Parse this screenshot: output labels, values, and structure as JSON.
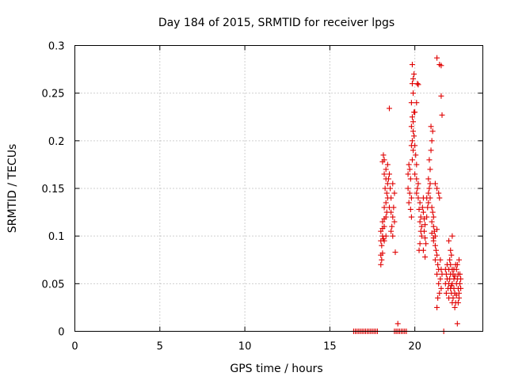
{
  "chart_data": {
    "type": "scatter",
    "title": "Day 184 of 2015, SRMTID for receiver lpgs",
    "xlabel": "GPS time / hours",
    "ylabel": "SRMTID / TECUs",
    "xlim": [
      0,
      24
    ],
    "ylim": [
      0,
      0.3
    ],
    "xticks": [
      "0",
      "5",
      "10",
      "15",
      "20"
    ],
    "yticks": [
      "0",
      "0.05",
      "0.1",
      "0.15",
      "0.2",
      "0.25",
      "0.3"
    ],
    "grid": true,
    "marker": "+",
    "color": "#e00000",
    "series": [
      {
        "points": [
          [
            16.4,
            0
          ],
          [
            16.5,
            0
          ],
          [
            16.6,
            0
          ],
          [
            16.7,
            0
          ],
          [
            16.8,
            0
          ],
          [
            16.9,
            0
          ],
          [
            17.0,
            0
          ],
          [
            17.1,
            0
          ],
          [
            17.2,
            0
          ],
          [
            17.3,
            0
          ],
          [
            17.4,
            0
          ],
          [
            17.5,
            0
          ],
          [
            17.6,
            0
          ],
          [
            17.7,
            0
          ],
          [
            17.8,
            0
          ],
          [
            18.8,
            0
          ],
          [
            18.9,
            0
          ],
          [
            19.0,
            0
          ],
          [
            19.1,
            0
          ],
          [
            19.2,
            0
          ],
          [
            19.3,
            0
          ],
          [
            19.4,
            0
          ],
          [
            19.5,
            0
          ],
          [
            21.7,
            0
          ],
          [
            18.0,
            0.07
          ],
          [
            18.05,
            0.075
          ],
          [
            18.0,
            0.08
          ],
          [
            18.1,
            0.082
          ],
          [
            18.05,
            0.09
          ],
          [
            18.0,
            0.095
          ],
          [
            18.15,
            0.097
          ],
          [
            18.1,
            0.1
          ],
          [
            18.2,
            0.095
          ],
          [
            18.0,
            0.105
          ],
          [
            18.1,
            0.108
          ],
          [
            18.2,
            0.11
          ],
          [
            18.3,
            0.1
          ],
          [
            18.1,
            0.115
          ],
          [
            18.2,
            0.118
          ],
          [
            18.3,
            0.12
          ],
          [
            18.35,
            0.125
          ],
          [
            18.2,
            0.13
          ],
          [
            18.3,
            0.135
          ],
          [
            18.4,
            0.14
          ],
          [
            18.35,
            0.145
          ],
          [
            18.25,
            0.15
          ],
          [
            18.4,
            0.155
          ],
          [
            18.3,
            0.16
          ],
          [
            18.45,
            0.16
          ],
          [
            18.2,
            0.165
          ],
          [
            18.3,
            0.17
          ],
          [
            18.4,
            0.175
          ],
          [
            18.1,
            0.178
          ],
          [
            18.2,
            0.18
          ],
          [
            18.15,
            0.185
          ],
          [
            18.5,
            0.165
          ],
          [
            18.55,
            0.15
          ],
          [
            18.6,
            0.14
          ],
          [
            18.5,
            0.13
          ],
          [
            18.6,
            0.125
          ],
          [
            18.7,
            0.12
          ],
          [
            18.65,
            0.11
          ],
          [
            18.7,
            0.1
          ],
          [
            18.6,
            0.105
          ],
          [
            18.8,
            0.115
          ],
          [
            18.75,
            0.13
          ],
          [
            18.8,
            0.145
          ],
          [
            18.7,
            0.155
          ],
          [
            18.5,
            0.234
          ],
          [
            18.85,
            0.083
          ],
          [
            19.0,
            0.008
          ],
          [
            19.6,
            0.165
          ],
          [
            19.7,
            0.17
          ],
          [
            19.65,
            0.175
          ],
          [
            19.75,
            0.16
          ],
          [
            19.6,
            0.15
          ],
          [
            19.7,
            0.145
          ],
          [
            19.8,
            0.14
          ],
          [
            19.65,
            0.135
          ],
          [
            19.75,
            0.128
          ],
          [
            19.8,
            0.12
          ],
          [
            19.85,
            0.18
          ],
          [
            19.9,
            0.19
          ],
          [
            19.8,
            0.195
          ],
          [
            19.85,
            0.2
          ],
          [
            19.9,
            0.21
          ],
          [
            19.8,
            0.215
          ],
          [
            19.9,
            0.22
          ],
          [
            19.85,
            0.225
          ],
          [
            19.95,
            0.23
          ],
          [
            19.8,
            0.24
          ],
          [
            19.9,
            0.25
          ],
          [
            19.85,
            0.26
          ],
          [
            19.9,
            0.265
          ],
          [
            19.95,
            0.27
          ],
          [
            19.85,
            0.28
          ],
          [
            19.95,
            0.205
          ],
          [
            20.0,
            0.195
          ],
          [
            20.05,
            0.185
          ],
          [
            20.1,
            0.175
          ],
          [
            20.0,
            0.165
          ],
          [
            20.1,
            0.16
          ],
          [
            20.2,
            0.155
          ],
          [
            20.15,
            0.15
          ],
          [
            20.1,
            0.145
          ],
          [
            20.2,
            0.14
          ],
          [
            20.0,
            0.23
          ],
          [
            20.1,
            0.24
          ],
          [
            20.15,
            0.26
          ],
          [
            20.2,
            0.259
          ],
          [
            20.3,
            0.135
          ],
          [
            20.25,
            0.128
          ],
          [
            20.35,
            0.12
          ],
          [
            20.3,
            0.115
          ],
          [
            20.4,
            0.11
          ],
          [
            20.35,
            0.105
          ],
          [
            20.4,
            0.1
          ],
          [
            20.3,
            0.092
          ],
          [
            20.25,
            0.085
          ],
          [
            20.45,
            0.13
          ],
          [
            20.5,
            0.125
          ],
          [
            20.5,
            0.14
          ],
          [
            20.55,
            0.118
          ],
          [
            20.6,
            0.112
          ],
          [
            20.55,
            0.105
          ],
          [
            20.6,
            0.098
          ],
          [
            20.65,
            0.092
          ],
          [
            20.7,
            0.12
          ],
          [
            20.75,
            0.13
          ],
          [
            20.8,
            0.135
          ],
          [
            20.7,
            0.14
          ],
          [
            20.8,
            0.145
          ],
          [
            20.85,
            0.15
          ],
          [
            20.9,
            0.155
          ],
          [
            20.8,
            0.16
          ],
          [
            20.9,
            0.17
          ],
          [
            20.85,
            0.18
          ],
          [
            20.95,
            0.19
          ],
          [
            21.0,
            0.2
          ],
          [
            21.05,
            0.21
          ],
          [
            20.95,
            0.215
          ],
          [
            20.9,
            0.14
          ],
          [
            21.0,
            0.13
          ],
          [
            21.05,
            0.125
          ],
          [
            21.1,
            0.12
          ],
          [
            21.0,
            0.115
          ],
          [
            21.1,
            0.11
          ],
          [
            21.15,
            0.105
          ],
          [
            21.2,
            0.1
          ],
          [
            21.1,
            0.095
          ],
          [
            21.2,
            0.09
          ],
          [
            21.25,
            0.085
          ],
          [
            21.3,
            0.08
          ],
          [
            21.2,
            0.075
          ],
          [
            21.35,
            0.07
          ],
          [
            21.4,
            0.065
          ],
          [
            21.3,
            0.06
          ],
          [
            21.2,
            0.155
          ],
          [
            21.3,
            0.15
          ],
          [
            21.4,
            0.145
          ],
          [
            21.45,
            0.14
          ],
          [
            21.5,
            0.075
          ],
          [
            21.55,
            0.065
          ],
          [
            21.6,
            0.06
          ],
          [
            21.5,
            0.055
          ],
          [
            21.4,
            0.05
          ],
          [
            21.55,
            0.045
          ],
          [
            21.45,
            0.04
          ],
          [
            21.35,
            0.035
          ],
          [
            21.3,
            0.025
          ],
          [
            21.6,
            0.227
          ],
          [
            21.55,
            0.247
          ],
          [
            21.45,
            0.28
          ],
          [
            21.55,
            0.279
          ],
          [
            21.3,
            0.287
          ],
          [
            20.5,
            0.085
          ],
          [
            20.6,
            0.078
          ],
          [
            21.0,
            0.103
          ],
          [
            21.1,
            0.098
          ],
          [
            21.3,
            0.107
          ],
          [
            21.8,
            0.065
          ],
          [
            21.85,
            0.06
          ],
          [
            21.9,
            0.055
          ],
          [
            21.8,
            0.05
          ],
          [
            21.95,
            0.045
          ],
          [
            21.85,
            0.04
          ],
          [
            22.0,
            0.05
          ],
          [
            22.05,
            0.055
          ],
          [
            22.1,
            0.06
          ],
          [
            22.0,
            0.065
          ],
          [
            22.1,
            0.07
          ],
          [
            22.05,
            0.075
          ],
          [
            22.15,
            0.08
          ],
          [
            22.2,
            0.065
          ],
          [
            22.25,
            0.06
          ],
          [
            22.3,
            0.055
          ],
          [
            22.2,
            0.05
          ],
          [
            22.3,
            0.045
          ],
          [
            22.35,
            0.04
          ],
          [
            22.25,
            0.035
          ],
          [
            22.4,
            0.03
          ],
          [
            22.35,
            0.025
          ],
          [
            22.45,
            0.05
          ],
          [
            22.5,
            0.055
          ],
          [
            22.55,
            0.06
          ],
          [
            22.45,
            0.065
          ],
          [
            22.5,
            0.07
          ],
          [
            22.6,
            0.075
          ],
          [
            22.55,
            0.045
          ],
          [
            22.6,
            0.04
          ],
          [
            22.65,
            0.05
          ],
          [
            22.7,
            0.055
          ],
          [
            22.6,
            0.035
          ],
          [
            22.65,
            0.06
          ],
          [
            22.55,
            0.03
          ],
          [
            22.7,
            0.045
          ],
          [
            22.1,
            0.045
          ],
          [
            22.15,
            0.04
          ],
          [
            22.0,
            0.035
          ],
          [
            22.2,
            0.03
          ],
          [
            22.3,
            0.065
          ],
          [
            22.4,
            0.07
          ],
          [
            22.1,
            0.085
          ],
          [
            22.0,
            0.095
          ],
          [
            22.2,
            0.1
          ],
          [
            22.5,
            0.008
          ],
          [
            21.9,
            0.07
          ],
          [
            22.15,
            0.048
          ],
          [
            22.35,
            0.058
          ],
          [
            22.45,
            0.038
          ]
        ]
      }
    ]
  }
}
